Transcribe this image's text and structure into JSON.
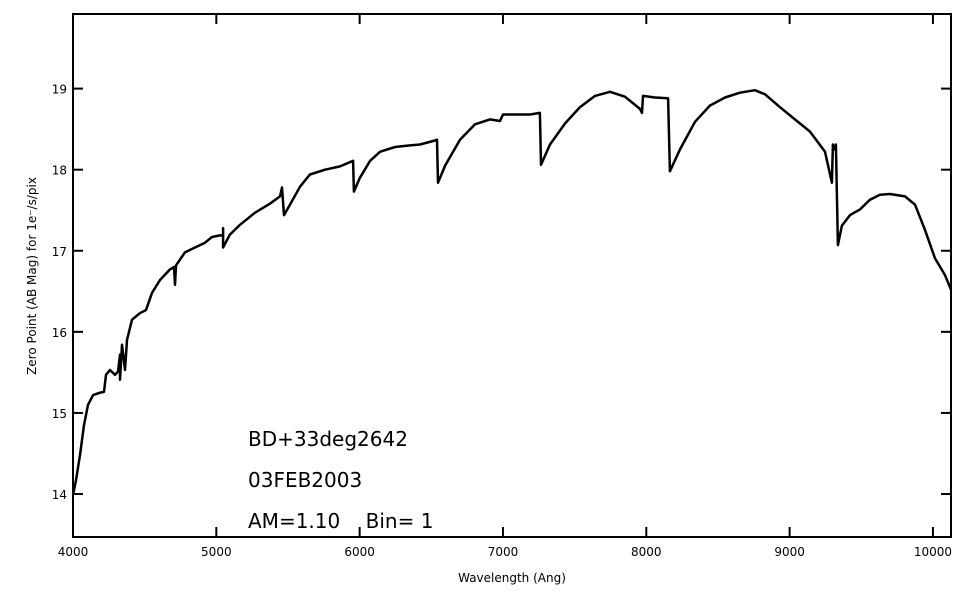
{
  "chart_data": {
    "type": "line",
    "xlabel": "Wavelength (Ang)",
    "ylabel": "Zero Point (AB Mag) for 1e⁻/s/pix",
    "annotations": [
      "BD+33deg2642",
      "03FEB2003",
      "AM=1.10    Bin= 1"
    ],
    "xlim": [
      4000,
      10126
    ],
    "ylim": [
      13.47,
      19.92
    ],
    "xticks": [
      4000,
      5000,
      6000,
      7000,
      8000,
      9000,
      10000
    ],
    "yticks": [
      14,
      15,
      16,
      17,
      18,
      19
    ],
    "x": [
      4000,
      4021,
      4049,
      4077,
      4105,
      4140,
      4188,
      4216,
      4230,
      4258,
      4293,
      4314,
      4328,
      4328,
      4342,
      4363,
      4377,
      4412,
      4467,
      4509,
      4551,
      4607,
      4677,
      4705,
      4712,
      4719,
      4781,
      4851,
      4921,
      4970,
      5026,
      5047,
      5047,
      5047,
      5095,
      5165,
      5270,
      5374,
      5444,
      5458,
      5472,
      5514,
      5584,
      5653,
      5758,
      5863,
      5954,
      5960,
      6002,
      6073,
      6142,
      6247,
      6351,
      6421,
      6526,
      6540,
      6547,
      6596,
      6700,
      6805,
      6909,
      6979,
      7000,
      7084,
      7189,
      7258,
      7265,
      7328,
      7433,
      7537,
      7642,
      7747,
      7851,
      7956,
      7970,
      7977,
      8061,
      8152,
      8165,
      8235,
      8340,
      8444,
      8549,
      8653,
      8758,
      8828,
      8933,
      9037,
      9142,
      9247,
      9295,
      9302,
      9316,
      9323,
      9337,
      9365,
      9421,
      9491,
      9561,
      9630,
      9700,
      9805,
      9875,
      9944,
      10014,
      10084,
      10126
    ],
    "series": [
      {
        "color": "#000000",
        "values": [
          13.99,
          14.17,
          14.48,
          14.85,
          15.1,
          15.22,
          15.25,
          15.26,
          15.47,
          15.53,
          15.47,
          15.51,
          15.72,
          15.41,
          15.84,
          15.53,
          15.9,
          16.15,
          16.23,
          16.27,
          16.48,
          16.64,
          16.77,
          16.8,
          16.58,
          16.82,
          16.98,
          17.04,
          17.1,
          17.17,
          17.19,
          17.19,
          17.28,
          17.04,
          17.2,
          17.32,
          17.47,
          17.58,
          17.67,
          17.78,
          17.44,
          17.57,
          17.79,
          17.94,
          18.0,
          18.04,
          18.11,
          17.73,
          17.9,
          18.11,
          18.22,
          18.28,
          18.3,
          18.31,
          18.36,
          18.37,
          17.84,
          18.05,
          18.37,
          18.56,
          18.62,
          18.6,
          18.68,
          18.68,
          18.68,
          18.7,
          18.06,
          18.31,
          18.57,
          18.77,
          18.91,
          18.96,
          18.9,
          18.75,
          18.7,
          18.91,
          18.89,
          18.88,
          17.98,
          18.25,
          18.59,
          18.79,
          18.89,
          18.95,
          18.98,
          18.93,
          18.77,
          18.62,
          18.47,
          18.22,
          17.84,
          18.31,
          18.25,
          18.31,
          17.07,
          17.31,
          17.44,
          17.51,
          17.63,
          17.69,
          17.7,
          17.67,
          17.57,
          17.26,
          16.91,
          16.7,
          16.52
        ]
      }
    ]
  }
}
